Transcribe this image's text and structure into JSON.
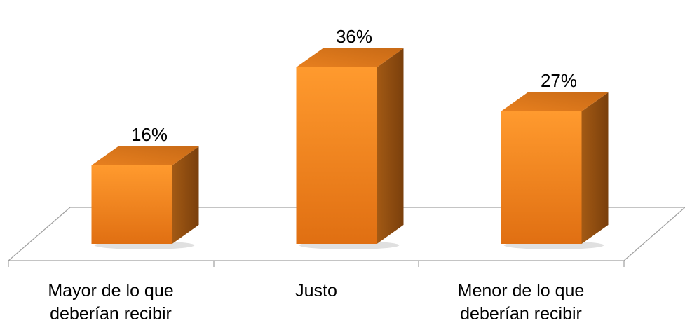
{
  "chart_data": {
    "type": "bar",
    "style": "3d-column",
    "categories": [
      "Mayor de lo que deberían recibir",
      "Justo",
      "Menor de lo que deberían recibir"
    ],
    "category_lines": [
      [
        "Mayor de lo que",
        "deberían recibir"
      ],
      [
        "Justo"
      ],
      [
        "Menor de lo que",
        "deberían recibir"
      ]
    ],
    "values": [
      16,
      36,
      27
    ],
    "value_labels": [
      "16%",
      "36%",
      "27%"
    ],
    "unit": "%",
    "title": "",
    "xlabel": "",
    "ylabel": "",
    "legend": "none",
    "grid": false,
    "colors": {
      "front_light": "#ff9a2e",
      "front_dark": "#e06f12",
      "side": "#8a4a10",
      "top": "#d8771c",
      "floor_edge": "#9a9a9a"
    }
  }
}
